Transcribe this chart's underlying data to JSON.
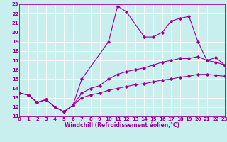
{
  "xlabel": "Windchill (Refroidissement éolien,°C)",
  "xlim": [
    0,
    23
  ],
  "ylim": [
    11,
    23
  ],
  "xticks": [
    0,
    1,
    2,
    3,
    4,
    5,
    6,
    7,
    8,
    9,
    10,
    11,
    12,
    13,
    14,
    15,
    16,
    17,
    18,
    19,
    20,
    21,
    22,
    23
  ],
  "yticks": [
    11,
    12,
    13,
    14,
    15,
    16,
    17,
    18,
    19,
    20,
    21,
    22,
    23
  ],
  "bg_color": "#c8eeee",
  "line_color": "#990099",
  "grid_color": "#ffffff",
  "line1_x": [
    0,
    1,
    2,
    3,
    4,
    5,
    6,
    7,
    10,
    11,
    12,
    14,
    15,
    16,
    17,
    18,
    19,
    20,
    21,
    22,
    23
  ],
  "line1_y": [
    13.5,
    13.3,
    12.5,
    12.8,
    12.0,
    11.5,
    12.2,
    15.0,
    19.0,
    22.8,
    22.2,
    19.5,
    19.5,
    20.0,
    21.2,
    21.5,
    21.7,
    19.0,
    17.0,
    17.3,
    16.5
  ],
  "line2_x": [
    0,
    1,
    2,
    3,
    4,
    5,
    6,
    7,
    8,
    9,
    10,
    11,
    12,
    13,
    14,
    15,
    16,
    17,
    18,
    19,
    20,
    21,
    22,
    23
  ],
  "line2_y": [
    13.5,
    13.3,
    12.5,
    12.8,
    12.0,
    11.5,
    12.2,
    13.5,
    14.0,
    14.3,
    15.0,
    15.5,
    15.8,
    16.0,
    16.2,
    16.5,
    16.8,
    17.0,
    17.2,
    17.2,
    17.4,
    17.0,
    16.8,
    16.5
  ],
  "line3_x": [
    0,
    1,
    2,
    3,
    4,
    5,
    6,
    7,
    8,
    9,
    10,
    11,
    12,
    13,
    14,
    15,
    16,
    17,
    18,
    19,
    20,
    21,
    22,
    23
  ],
  "line3_y": [
    13.5,
    13.3,
    12.5,
    12.8,
    12.0,
    11.5,
    12.2,
    13.0,
    13.3,
    13.5,
    13.8,
    14.0,
    14.2,
    14.4,
    14.5,
    14.7,
    14.9,
    15.0,
    15.2,
    15.3,
    15.5,
    15.5,
    15.4,
    15.3
  ],
  "tick_fontsize": 5,
  "xlabel_fontsize": 5.5
}
